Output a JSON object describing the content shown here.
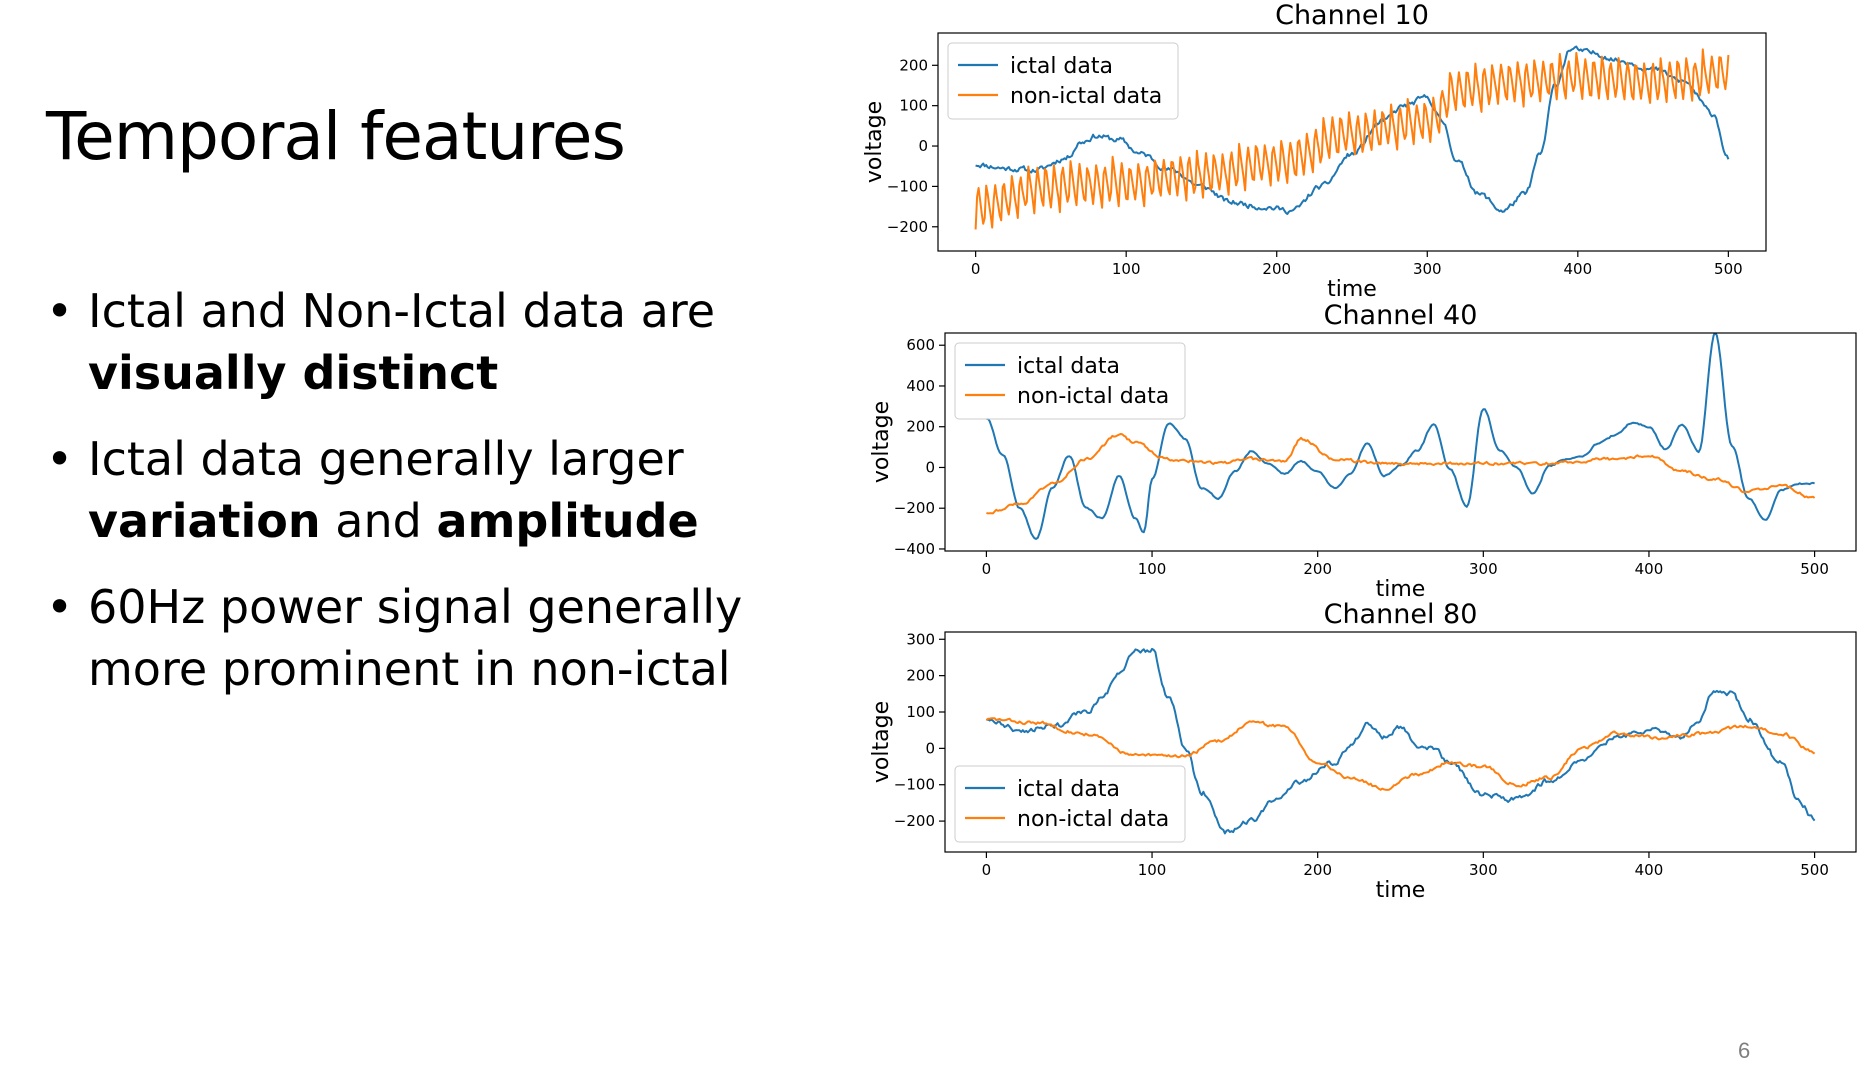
{
  "slide": {
    "title": "Temporal features",
    "page_number": "6",
    "bullets": [
      {
        "parts": [
          {
            "text": "Ictal and Non-Ictal data are ",
            "bold": false
          },
          {
            "text": "visually distinct",
            "bold": true
          }
        ]
      },
      {
        "parts": [
          {
            "text": "Ictal data generally larger ",
            "bold": false
          },
          {
            "text": "variation",
            "bold": true
          },
          {
            "text": " and ",
            "bold": false
          },
          {
            "text": "amplitude",
            "bold": true
          }
        ]
      },
      {
        "parts": [
          {
            "text": "60Hz power signal generally more prominent in non-ictal",
            "bold": false
          }
        ]
      }
    ]
  },
  "colors": {
    "ictal": "#1f77b4",
    "non_ictal": "#ff7f0e"
  },
  "chart_data": [
    {
      "type": "line",
      "title": "Channel 10",
      "xlabel": "time",
      "ylabel": "voltage",
      "xlim": [
        -25,
        525
      ],
      "ylim": [
        -260,
        280
      ],
      "xticks": [
        0,
        100,
        200,
        300,
        400,
        500
      ],
      "yticks": [
        -200,
        -100,
        0,
        100,
        200
      ],
      "legend": "upper-left",
      "series": [
        {
          "name": "ictal data",
          "color": "#1f77b4",
          "knots": [
            [
              0,
              -45
            ],
            [
              20,
              -55
            ],
            [
              40,
              -60
            ],
            [
              60,
              -30
            ],
            [
              70,
              10
            ],
            [
              80,
              25
            ],
            [
              95,
              15
            ],
            [
              110,
              -20
            ],
            [
              130,
              -60
            ],
            [
              150,
              -100
            ],
            [
              170,
              -140
            ],
            [
              190,
              -150
            ],
            [
              210,
              -160
            ],
            [
              230,
              -100
            ],
            [
              250,
              -20
            ],
            [
              270,
              60
            ],
            [
              285,
              100
            ],
            [
              300,
              120
            ],
            [
              310,
              60
            ],
            [
              320,
              -40
            ],
            [
              335,
              -120
            ],
            [
              350,
              -160
            ],
            [
              365,
              -120
            ],
            [
              375,
              -20
            ],
            [
              385,
              150
            ],
            [
              395,
              240
            ],
            [
              410,
              230
            ],
            [
              430,
              210
            ],
            [
              450,
              190
            ],
            [
              470,
              160
            ],
            [
              490,
              80
            ],
            [
              500,
              -30
            ]
          ],
          "noise": 13,
          "spikes": null,
          "seed": 11
        },
        {
          "name": "non-ictal data",
          "color": "#ff7f0e",
          "knots": [
            [
              0,
              -150
            ],
            [
              50,
              -100
            ],
            [
              100,
              -90
            ],
            [
              150,
              -70
            ],
            [
              200,
              -40
            ],
            [
              250,
              30
            ],
            [
              300,
              60
            ],
            [
              320,
              140
            ],
            [
              360,
              160
            ],
            [
              400,
              170
            ],
            [
              450,
              160
            ],
            [
              500,
              180
            ]
          ],
          "noise": 6,
          "spikes": {
            "period": 5.6,
            "amplitude": 115
          },
          "seed": 23
        }
      ]
    },
    {
      "type": "line",
      "title": "Channel 40",
      "xlabel": "time",
      "ylabel": "voltage",
      "xlim": [
        -25,
        525
      ],
      "ylim": [
        -410,
        660
      ],
      "xticks": [
        0,
        100,
        200,
        300,
        400,
        500
      ],
      "yticks": [
        -400,
        -200,
        0,
        200,
        400,
        600
      ],
      "legend": "upper-left",
      "series": [
        {
          "name": "ictal data",
          "color": "#1f77b4",
          "knots": [
            [
              0,
              240
            ],
            [
              10,
              60
            ],
            [
              20,
              -200
            ],
            [
              30,
              -350
            ],
            [
              40,
              -100
            ],
            [
              50,
              60
            ],
            [
              60,
              -200
            ],
            [
              70,
              -250
            ],
            [
              80,
              -40
            ],
            [
              90,
              -250
            ],
            [
              95,
              -320
            ],
            [
              100,
              -60
            ],
            [
              110,
              220
            ],
            [
              120,
              140
            ],
            [
              130,
              -100
            ],
            [
              140,
              -150
            ],
            [
              150,
              -20
            ],
            [
              160,
              80
            ],
            [
              170,
              20
            ],
            [
              180,
              -30
            ],
            [
              190,
              30
            ],
            [
              200,
              -20
            ],
            [
              210,
              -100
            ],
            [
              220,
              -30
            ],
            [
              230,
              120
            ],
            [
              240,
              -40
            ],
            [
              250,
              10
            ],
            [
              260,
              80
            ],
            [
              270,
              210
            ],
            [
              280,
              -10
            ],
            [
              290,
              -190
            ],
            [
              300,
              290
            ],
            [
              310,
              80
            ],
            [
              320,
              0
            ],
            [
              330,
              -130
            ],
            [
              340,
              10
            ],
            [
              350,
              40
            ],
            [
              360,
              60
            ],
            [
              370,
              120
            ],
            [
              380,
              160
            ],
            [
              390,
              220
            ],
            [
              400,
              200
            ],
            [
              410,
              90
            ],
            [
              420,
              210
            ],
            [
              430,
              80
            ],
            [
              440,
              660
            ],
            [
              450,
              110
            ],
            [
              460,
              -150
            ],
            [
              470,
              -260
            ],
            [
              480,
              -110
            ],
            [
              490,
              -80
            ],
            [
              500,
              -80
            ]
          ],
          "noise": 8,
          "spikes": null,
          "seed": 41
        },
        {
          "name": "non-ictal data",
          "color": "#ff7f0e",
          "knots": [
            [
              0,
              -220
            ],
            [
              20,
              -180
            ],
            [
              40,
              -80
            ],
            [
              60,
              40
            ],
            [
              80,
              160
            ],
            [
              90,
              120
            ],
            [
              110,
              40
            ],
            [
              140,
              20
            ],
            [
              160,
              40
            ],
            [
              180,
              30
            ],
            [
              190,
              140
            ],
            [
              210,
              40
            ],
            [
              240,
              20
            ],
            [
              300,
              20
            ],
            [
              340,
              20
            ],
            [
              380,
              40
            ],
            [
              400,
              60
            ],
            [
              420,
              -20
            ],
            [
              440,
              -60
            ],
            [
              460,
              -120
            ],
            [
              480,
              -90
            ],
            [
              500,
              -150
            ]
          ],
          "noise": 14,
          "spikes": null,
          "seed": 43
        }
      ]
    },
    {
      "type": "line",
      "title": "Channel 80",
      "xlabel": "time",
      "ylabel": "voltage",
      "xlim": [
        -25,
        525
      ],
      "ylim": [
        -285,
        320
      ],
      "xticks": [
        0,
        100,
        200,
        300,
        400,
        500
      ],
      "yticks": [
        -200,
        -100,
        0,
        100,
        200,
        300
      ],
      "legend": "lower-left",
      "series": [
        {
          "name": "ictal data",
          "color": "#1f77b4",
          "knots": [
            [
              0,
              80
            ],
            [
              20,
              50
            ],
            [
              40,
              60
            ],
            [
              60,
              100
            ],
            [
              70,
              140
            ],
            [
              80,
              200
            ],
            [
              90,
              270
            ],
            [
              100,
              270
            ],
            [
              110,
              140
            ],
            [
              120,
              0
            ],
            [
              130,
              -120
            ],
            [
              145,
              -230
            ],
            [
              160,
              -200
            ],
            [
              175,
              -140
            ],
            [
              190,
              -90
            ],
            [
              210,
              -40
            ],
            [
              220,
              10
            ],
            [
              230,
              70
            ],
            [
              240,
              30
            ],
            [
              250,
              60
            ],
            [
              260,
              10
            ],
            [
              270,
              0
            ],
            [
              280,
              -40
            ],
            [
              300,
              -130
            ],
            [
              320,
              -140
            ],
            [
              340,
              -90
            ],
            [
              360,
              -30
            ],
            [
              380,
              30
            ],
            [
              400,
              50
            ],
            [
              420,
              30
            ],
            [
              430,
              80
            ],
            [
              440,
              160
            ],
            [
              450,
              150
            ],
            [
              460,
              80
            ],
            [
              480,
              -40
            ],
            [
              490,
              -140
            ],
            [
              500,
              -195
            ]
          ],
          "noise": 14,
          "spikes": null,
          "seed": 81
        },
        {
          "name": "non-ictal data",
          "color": "#ff7f0e",
          "knots": [
            [
              0,
              80
            ],
            [
              30,
              70
            ],
            [
              60,
              40
            ],
            [
              90,
              -20
            ],
            [
              120,
              -20
            ],
            [
              140,
              20
            ],
            [
              160,
              70
            ],
            [
              180,
              60
            ],
            [
              200,
              -40
            ],
            [
              220,
              -80
            ],
            [
              240,
              -110
            ],
            [
              260,
              -70
            ],
            [
              280,
              -40
            ],
            [
              300,
              -50
            ],
            [
              320,
              -100
            ],
            [
              340,
              -80
            ],
            [
              360,
              0
            ],
            [
              380,
              40
            ],
            [
              410,
              30
            ],
            [
              430,
              40
            ],
            [
              460,
              60
            ],
            [
              480,
              40
            ],
            [
              500,
              -10
            ]
          ],
          "noise": 9,
          "spikes": null,
          "seed": 83
        }
      ]
    }
  ]
}
